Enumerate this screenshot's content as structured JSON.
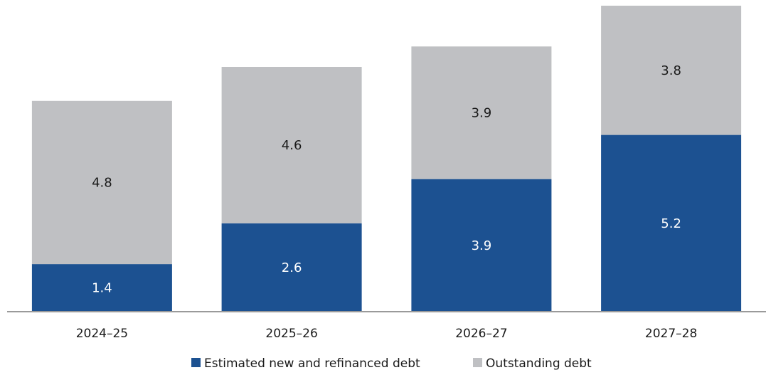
{
  "chart_data": {
    "type": "bar",
    "stacked": true,
    "categories": [
      "2024–25",
      "2025–26",
      "2026–27",
      "2027–28"
    ],
    "series": [
      {
        "name": "Estimated new and refinanced debt",
        "values": [
          1.4,
          2.6,
          3.9,
          5.2
        ],
        "color": "#1c5191",
        "label_color": "#ffffff"
      },
      {
        "name": "Outstanding debt",
        "values": [
          4.8,
          4.6,
          3.9,
          3.8
        ],
        "color": "#bfc0c3",
        "label_color": "#1a1a1a"
      }
    ],
    "data_labels": {
      "series_0": [
        "1.4",
        "2.6",
        "3.9",
        "5.2"
      ],
      "series_1": [
        "4.8",
        "4.6",
        "3.9",
        "3.8"
      ]
    },
    "ylim": [
      0,
      9
    ],
    "legend": "bottom",
    "grid": false,
    "axis_color": "#9a9a9a"
  }
}
